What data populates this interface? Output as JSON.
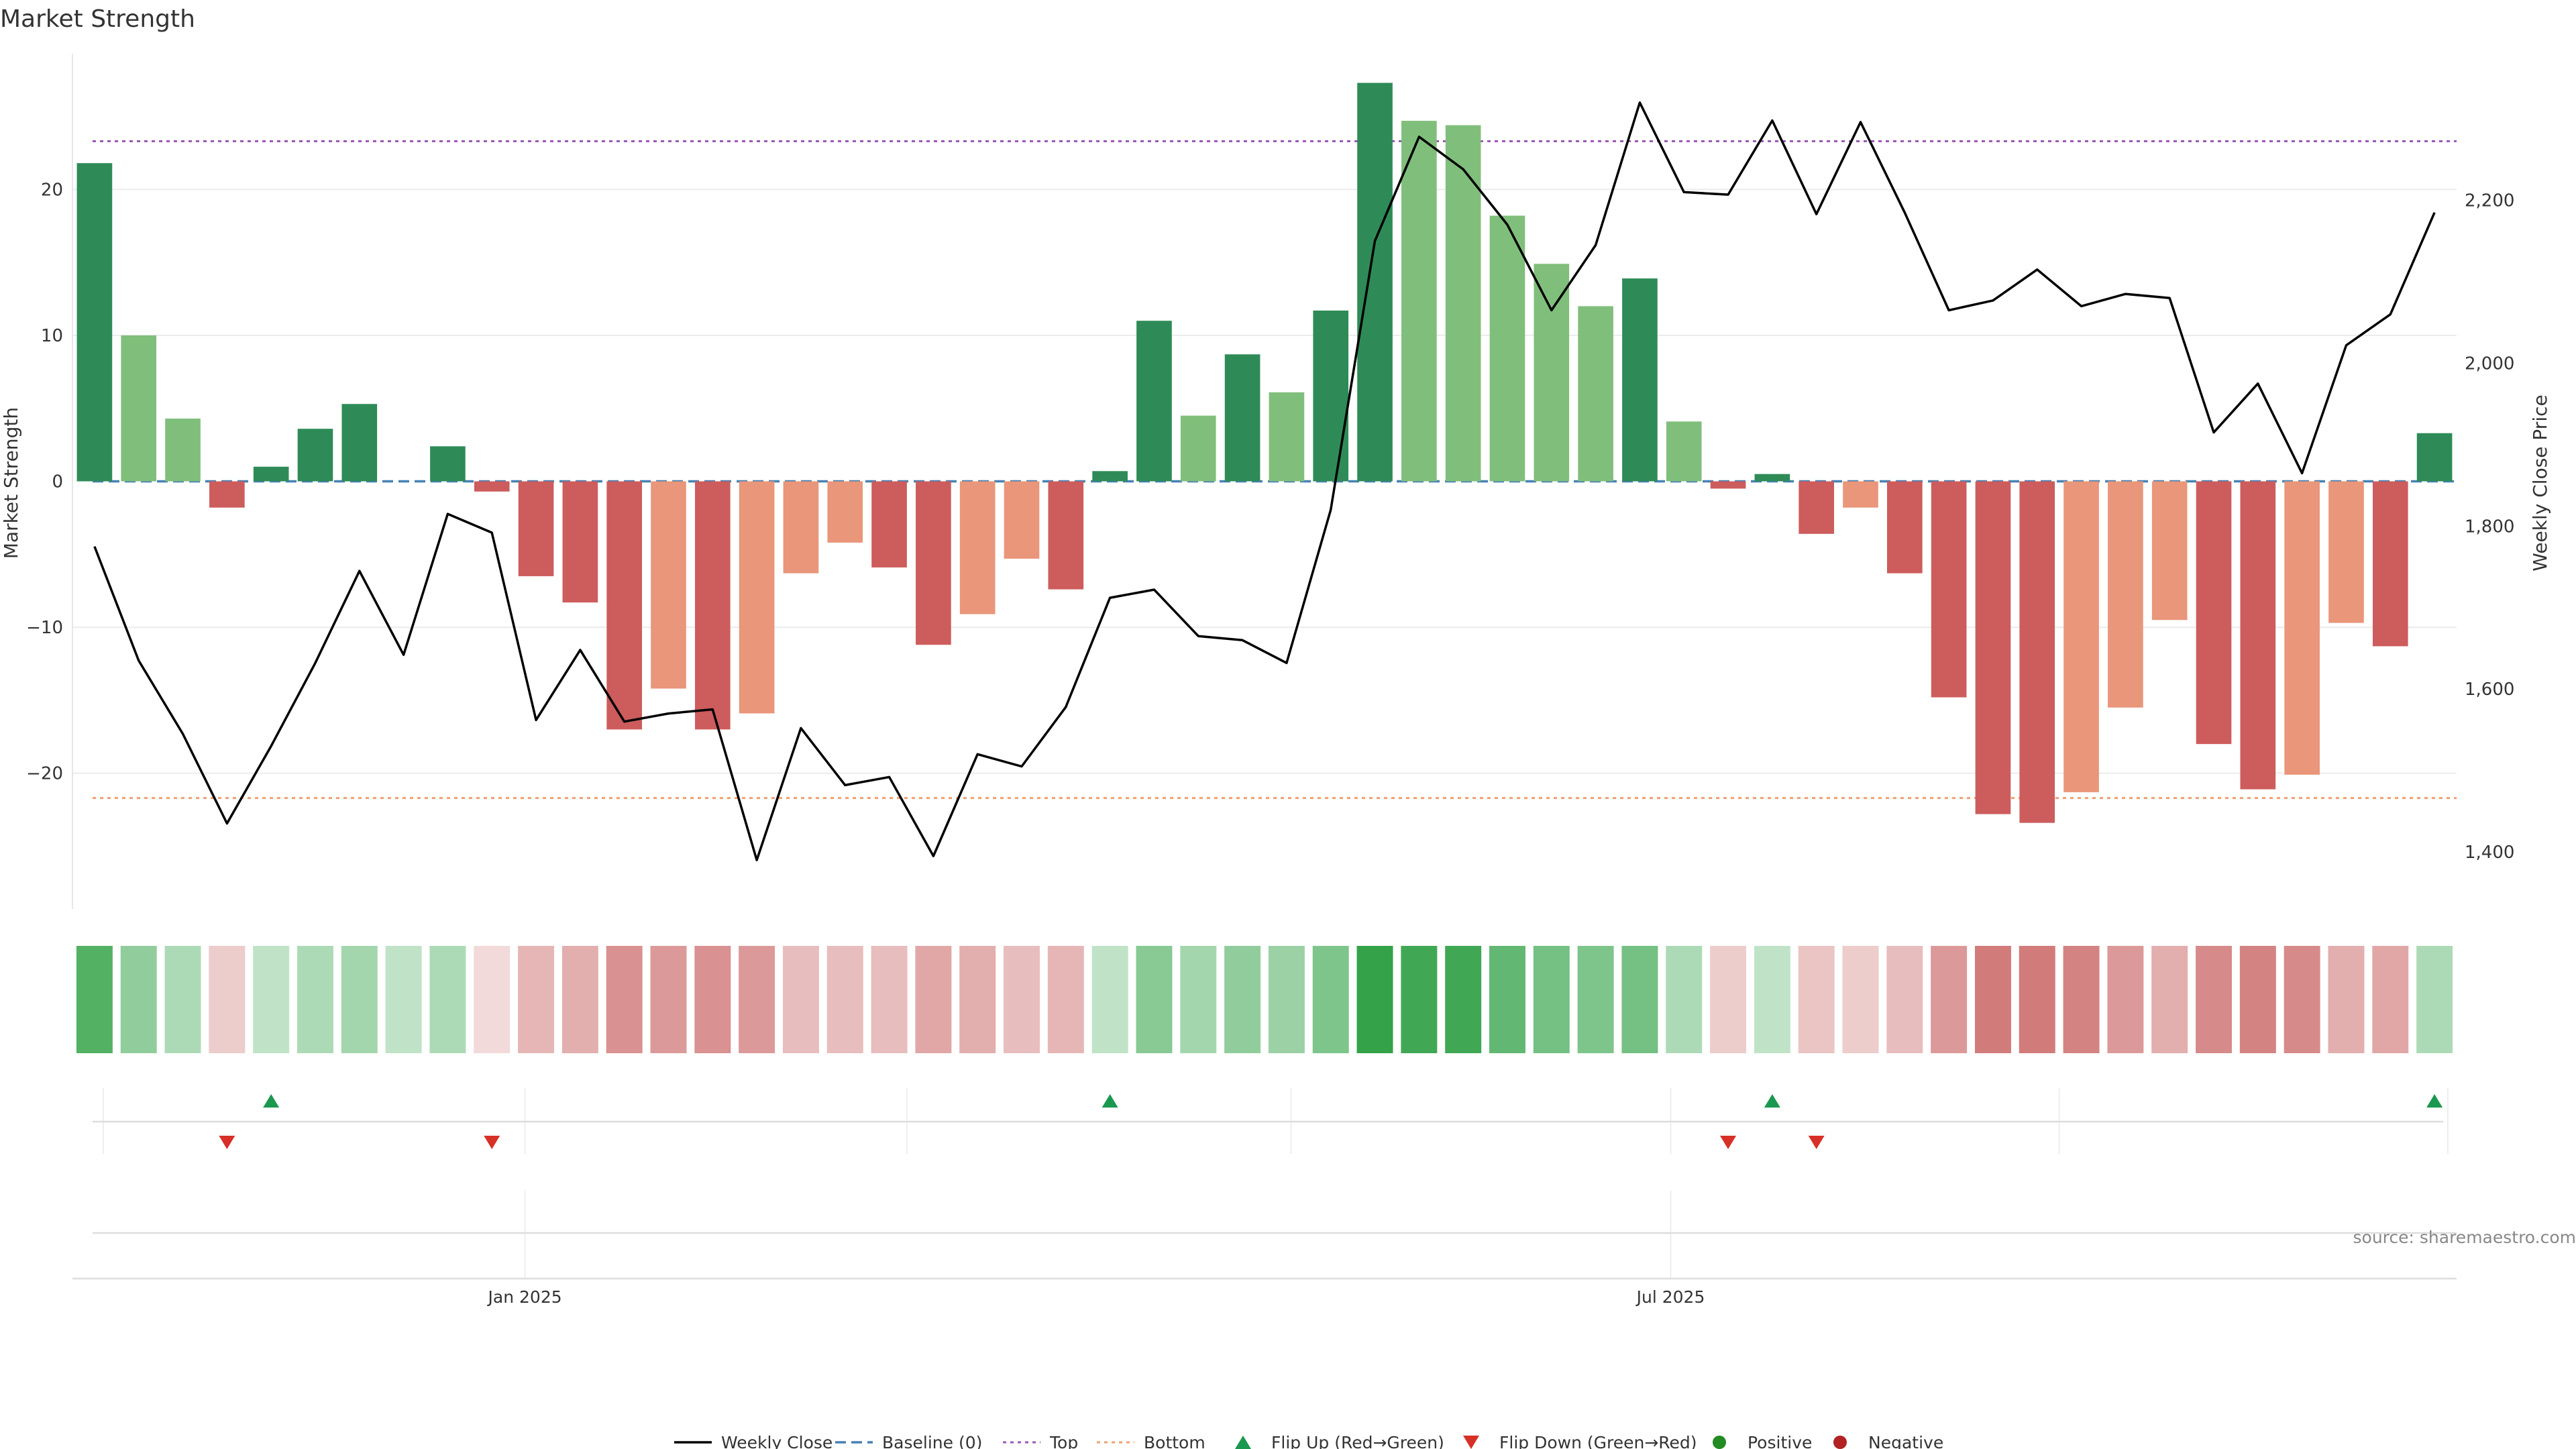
{
  "chart_data": {
    "type": "bar",
    "title": "Market Strength",
    "ylabel": "Market Strength",
    "y2label": "Weekly Close Price",
    "ylim": [
      -29.3,
      29.3
    ],
    "y2lim": [
      1330,
      2380
    ],
    "yticks": [
      -20,
      -10,
      0,
      10,
      20
    ],
    "y2ticks": [
      1400,
      1600,
      1800,
      2000,
      2200
    ],
    "y2tick_labels": [
      "1,400",
      "1,600",
      "1,800",
      "2,000",
      "2,200"
    ],
    "x_tick_labels": [
      {
        "week": 9.75,
        "label": "Jan 2025"
      },
      {
        "week": 35.7,
        "label": "Jul 2025"
      }
    ],
    "top_line": 23.3,
    "bottom_line": -21.7,
    "grid": true,
    "legend_position": "bottom-center",
    "colors": {
      "strong_up": "#2e8b57",
      "weak_up": "#80bf7b",
      "strong_down": "#cd5c5c",
      "weak_down": "#e9967a",
      "price_line": "#000000",
      "baseline": "#4682b4",
      "top": "#9b59b6",
      "bottom": "#f0a070",
      "flip_up": "#1a9850",
      "flip_down": "#d73027",
      "positive": "#228b22",
      "negative": "#b22222"
    },
    "series": [
      {
        "name": "Market Strength",
        "values": [
          21.8,
          10.0,
          4.3,
          -1.8,
          1.0,
          3.6,
          5.3,
          0,
          2.4,
          -0.7,
          -6.5,
          -8.3,
          -17,
          -14.2,
          -17,
          -15.9,
          -6.3,
          -4.2,
          -5.9,
          -11.2,
          -9.1,
          -5.3,
          -7.4,
          0.7,
          11.0,
          4.5,
          8.7,
          6.1,
          11.7,
          27.3,
          24.7,
          24.4,
          18.2,
          14.9,
          12.0,
          13.9,
          4.1,
          -0.5,
          0.5,
          -3.6,
          -1.8,
          -6.3,
          -14.8,
          -22.8,
          -23.4,
          -21.3,
          -15.5,
          -9.5,
          -18,
          -21.1,
          -20.1,
          -9.7,
          -11.3,
          3.3
        ],
        "shade": [
          "S",
          "W",
          "W",
          "S",
          "S",
          "S",
          "S",
          "S",
          "S",
          "S",
          "S",
          "S",
          "S",
          "W",
          "S",
          "W",
          "W",
          "W",
          "S",
          "S",
          "W",
          "W",
          "S",
          "S",
          "S",
          "W",
          "S",
          "W",
          "S",
          "S",
          "W",
          "W",
          "W",
          "W",
          "W",
          "S",
          "W",
          "S",
          "S",
          "S",
          "W",
          "S",
          "S",
          "S",
          "S",
          "W",
          "W",
          "W",
          "S",
          "S",
          "W",
          "W",
          "S",
          "S"
        ]
      },
      {
        "name": "Weekly Close",
        "values": [
          1775,
          1635,
          1545,
          1435,
          1530,
          1632,
          1745,
          1642,
          1815,
          1792,
          1562,
          1648,
          1560,
          1570,
          1575,
          1390,
          1552,
          1482,
          1492,
          1395,
          1520,
          1505,
          1578,
          1712,
          1722,
          1665,
          1660,
          1632,
          1820,
          2150,
          2278,
          2238,
          2170,
          2065,
          2145,
          2320,
          2210,
          2207,
          2298,
          2183,
          2296,
          2185,
          2065,
          2077,
          2115,
          2070,
          2085,
          2080,
          1915,
          1975,
          1865,
          2022,
          2060,
          2185
        ]
      }
    ],
    "heat_strip": [
      0.78,
      0.45,
      0.3,
      -0.2,
      0.2,
      0.3,
      0.35,
      0.2,
      0.3,
      -0.1,
      -0.35,
      -0.4,
      -0.6,
      -0.55,
      -0.6,
      -0.55,
      -0.3,
      -0.3,
      -0.3,
      -0.45,
      -0.4,
      -0.3,
      -0.35,
      0.2,
      0.5,
      0.35,
      0.45,
      0.4,
      0.55,
      0.95,
      0.88,
      0.88,
      0.7,
      0.6,
      0.55,
      0.6,
      0.3,
      -0.2,
      0.2,
      -0.25,
      -0.2,
      -0.3,
      -0.55,
      -0.75,
      -0.75,
      -0.7,
      -0.55,
      -0.4,
      -0.65,
      -0.7,
      -0.65,
      -0.4,
      -0.45,
      0.3
    ],
    "flips_up_weeks": [
      4,
      23,
      38,
      53
    ],
    "flips_down_weeks": [
      3,
      9,
      37,
      39
    ],
    "legend": [
      "Weekly Close",
      "Baseline (0)",
      "Top",
      "Bottom",
      "Flip Up (Red→Green)",
      "Flip Down (Green→Red)",
      "Positive",
      "Negative"
    ],
    "source_text": "source: sharemaestro.com"
  }
}
